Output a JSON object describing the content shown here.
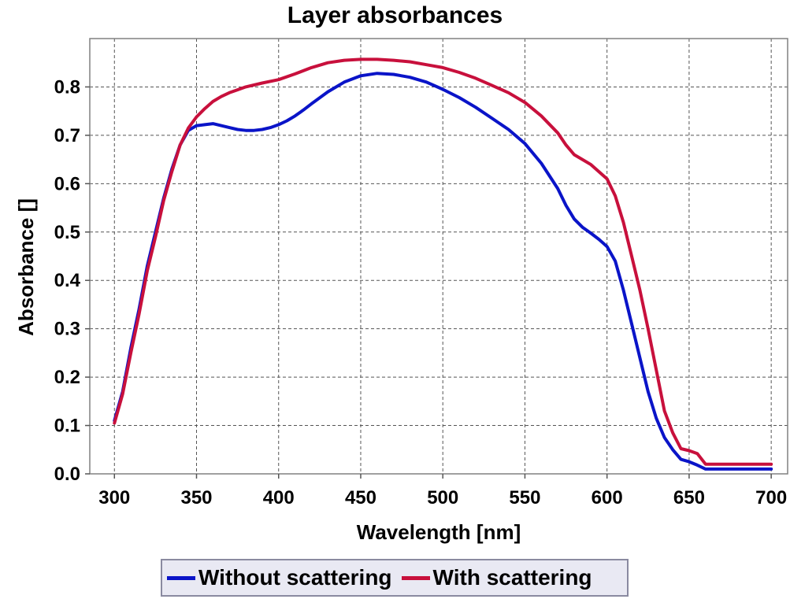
{
  "chart_data": {
    "type": "line",
    "title": "Layer absorbances",
    "xlabel": "Wavelength [nm]",
    "ylabel": "Absorbance []",
    "xlim": [
      285,
      710
    ],
    "ylim": [
      0,
      0.9
    ],
    "xticks": [
      300,
      350,
      400,
      450,
      500,
      550,
      600,
      650,
      700
    ],
    "yticks": [
      0.0,
      0.1,
      0.2,
      0.3,
      0.4,
      0.5,
      0.6,
      0.7,
      0.8
    ],
    "grid": true,
    "legend_position": "bottom",
    "series": [
      {
        "name": "Without scattering",
        "color": "#0a14c8",
        "x": [
          300,
          305,
          310,
          315,
          320,
          325,
          330,
          335,
          340,
          345,
          350,
          355,
          360,
          365,
          370,
          375,
          380,
          385,
          390,
          395,
          400,
          405,
          410,
          415,
          420,
          430,
          440,
          450,
          460,
          470,
          480,
          490,
          500,
          510,
          520,
          530,
          540,
          550,
          560,
          570,
          575,
          580,
          585,
          590,
          595,
          600,
          605,
          610,
          615,
          620,
          625,
          630,
          635,
          640,
          645,
          650,
          655,
          660,
          670,
          680,
          690,
          700
        ],
        "y": [
          0.11,
          0.17,
          0.26,
          0.34,
          0.43,
          0.5,
          0.57,
          0.63,
          0.68,
          0.71,
          0.72,
          0.722,
          0.724,
          0.72,
          0.716,
          0.712,
          0.71,
          0.71,
          0.712,
          0.716,
          0.722,
          0.73,
          0.74,
          0.752,
          0.765,
          0.79,
          0.81,
          0.823,
          0.828,
          0.826,
          0.82,
          0.81,
          0.795,
          0.778,
          0.758,
          0.735,
          0.712,
          0.683,
          0.642,
          0.59,
          0.555,
          0.527,
          0.51,
          0.498,
          0.485,
          0.47,
          0.44,
          0.38,
          0.31,
          0.24,
          0.17,
          0.115,
          0.075,
          0.05,
          0.03,
          0.025,
          0.018,
          0.01,
          0.01,
          0.01,
          0.01,
          0.01
        ]
      },
      {
        "name": "With scattering",
        "color": "#c8103c",
        "x": [
          300,
          305,
          310,
          315,
          320,
          325,
          330,
          335,
          340,
          345,
          350,
          355,
          360,
          365,
          370,
          375,
          380,
          390,
          400,
          410,
          420,
          430,
          440,
          450,
          460,
          470,
          480,
          490,
          500,
          510,
          520,
          530,
          540,
          550,
          560,
          570,
          575,
          580,
          590,
          600,
          605,
          610,
          615,
          620,
          625,
          630,
          635,
          640,
          645,
          650,
          655,
          660,
          670,
          680,
          690,
          700
        ],
        "y": [
          0.105,
          0.165,
          0.25,
          0.33,
          0.42,
          0.49,
          0.565,
          0.625,
          0.68,
          0.715,
          0.738,
          0.755,
          0.77,
          0.78,
          0.788,
          0.794,
          0.8,
          0.808,
          0.815,
          0.827,
          0.84,
          0.85,
          0.855,
          0.857,
          0.857,
          0.855,
          0.852,
          0.846,
          0.84,
          0.83,
          0.818,
          0.803,
          0.788,
          0.768,
          0.74,
          0.705,
          0.68,
          0.66,
          0.64,
          0.61,
          0.575,
          0.52,
          0.45,
          0.38,
          0.3,
          0.215,
          0.13,
          0.085,
          0.052,
          0.048,
          0.042,
          0.02,
          0.02,
          0.02,
          0.02,
          0.02
        ]
      }
    ]
  }
}
